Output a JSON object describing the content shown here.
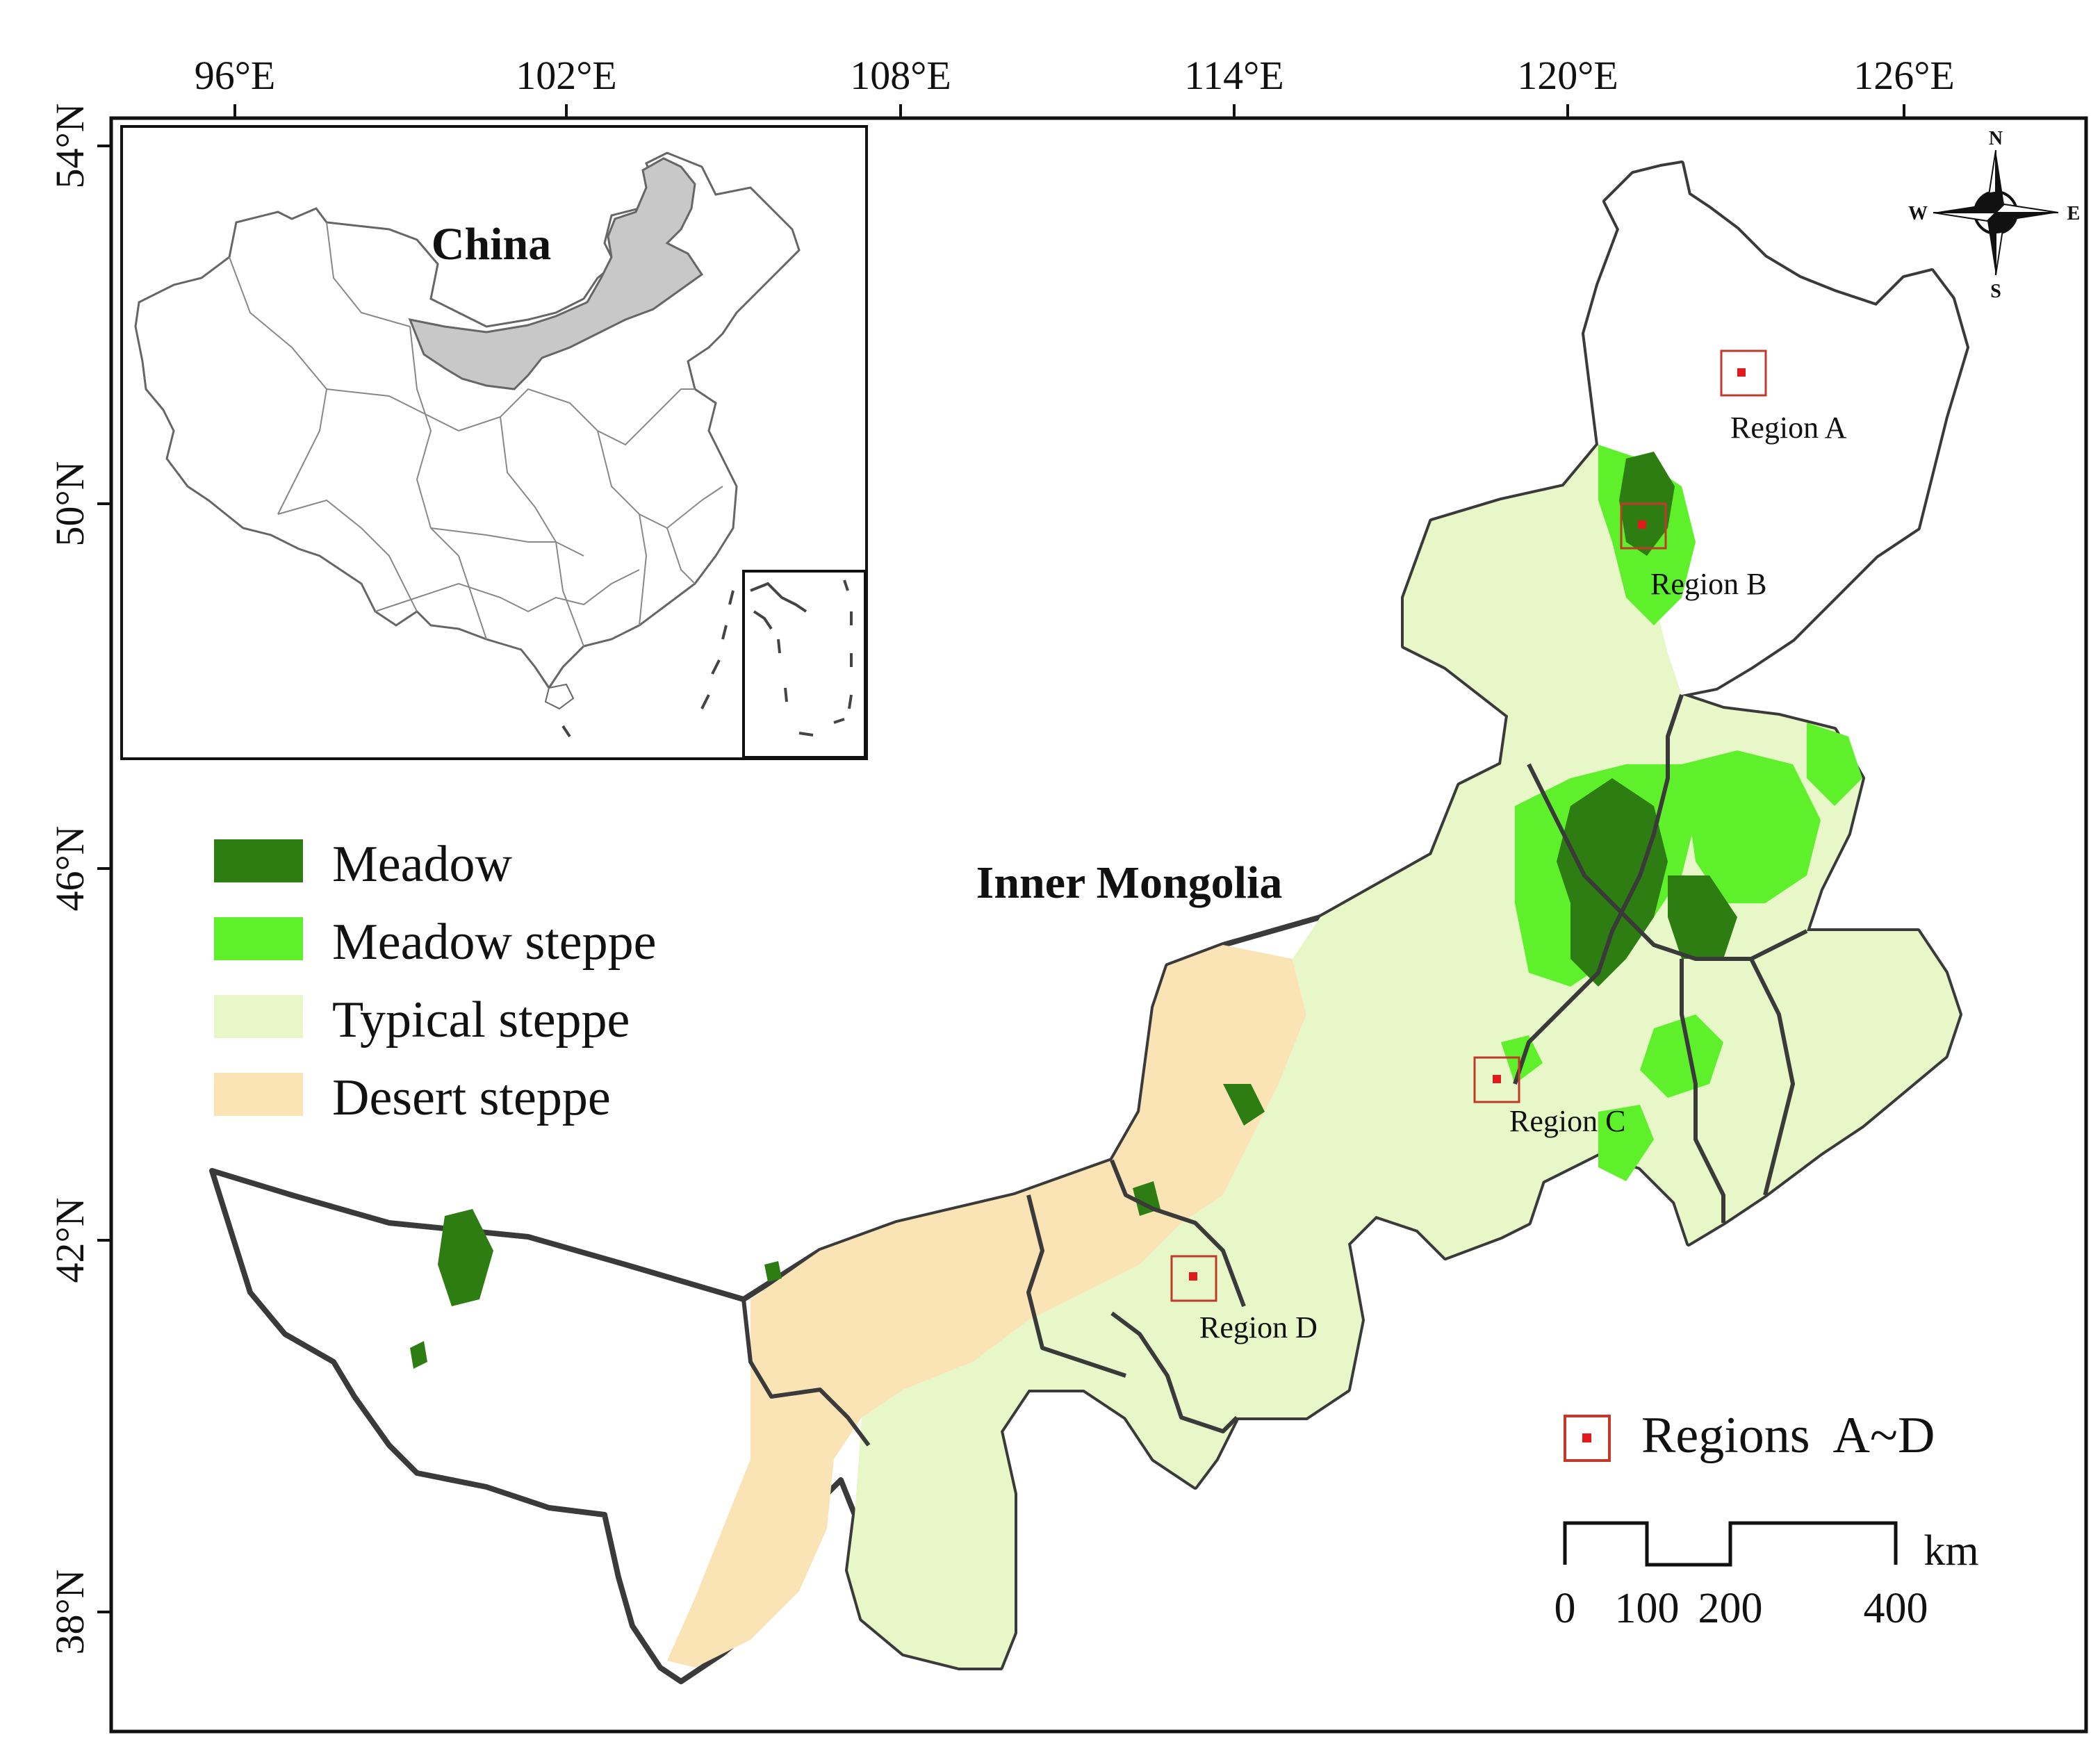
{
  "map": {
    "inset_title": "China",
    "main_title": "Inner Mongolia",
    "longitude_labels": [
      "96°E",
      "102°E",
      "108°E",
      "114°E",
      "120°E",
      "126°E"
    ],
    "latitude_labels": [
      "54°N",
      "50°N",
      "46°N",
      "42°N",
      "38°N"
    ]
  },
  "legend": {
    "items": [
      {
        "label": "Meadow",
        "color": "#2e7d12"
      },
      {
        "label": "Meadow steppe",
        "color": "#5ef02a"
      },
      {
        "label": "Typical steppe",
        "color": "#e8f7c8"
      },
      {
        "label": "Desert steppe",
        "color": "#fae3b4"
      }
    ],
    "regions_label": "Regions  A~D",
    "regions_color": "#e31a1c"
  },
  "regions": [
    {
      "label": "Region A"
    },
    {
      "label": "Region B"
    },
    {
      "label": "Region C"
    },
    {
      "label": "Region D"
    }
  ],
  "compass": {
    "n": "N",
    "s": "S",
    "e": "E",
    "w": "W"
  },
  "scale_bar": {
    "unit": "km",
    "ticks": [
      "0",
      "100",
      "200",
      "400"
    ]
  },
  "colors": {
    "province_gray": "#c8c8c8",
    "border": "#333333"
  }
}
